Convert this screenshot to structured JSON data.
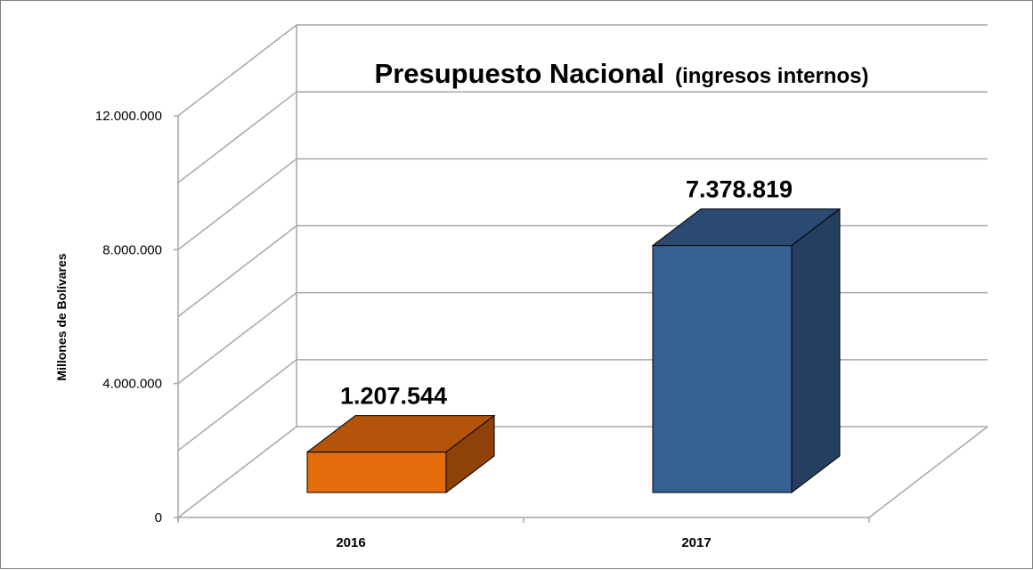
{
  "chart_data": {
    "type": "bar",
    "title": "Presupuesto Nacional",
    "subtitle": "(ingresos internos)",
    "ylabel": "Millones de Bolívares",
    "xlabel": "",
    "categories": [
      "2016",
      "2017"
    ],
    "values": [
      1207544,
      7378819
    ],
    "data_labels": [
      "1.207.544",
      "7.378.819"
    ],
    "ylim": [
      0,
      12000000
    ],
    "yticks": [
      0,
      4000000,
      8000000,
      12000000
    ],
    "ytick_labels": [
      "0",
      "4.000.000",
      "8.000.000",
      "12.000.000"
    ],
    "grid": true,
    "three_d": true,
    "legend": "none",
    "bar_colors": [
      {
        "front": "#e46c0a",
        "top": "#b4530a",
        "side": "#8f4208"
      },
      {
        "front": "#376092",
        "top": "#2a4a73",
        "side": "#243f60"
      }
    ],
    "gridline_color": "#a6a6a6"
  }
}
